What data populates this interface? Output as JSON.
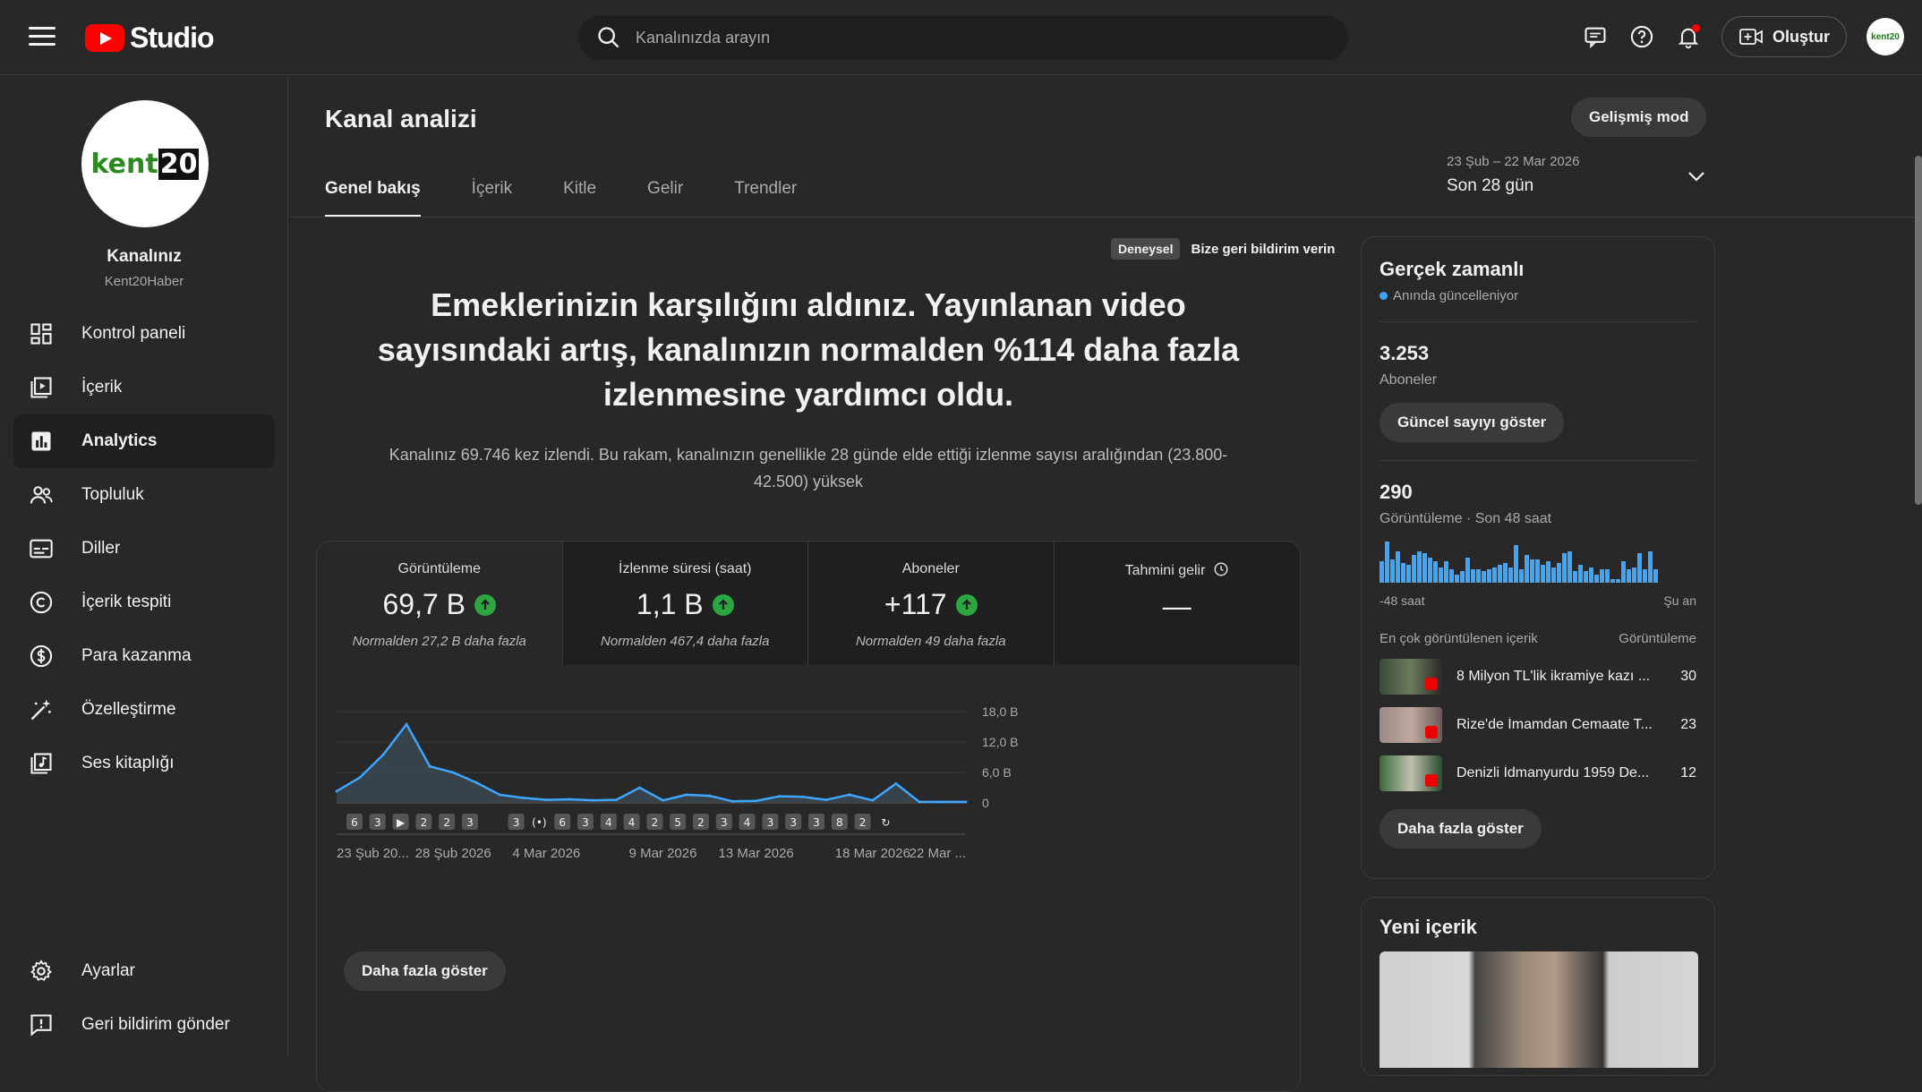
{
  "app": {
    "logo_text": "Studio",
    "search_placeholder": "Kanalınızda arayın",
    "create_label": "Oluştur",
    "avatar_text": "kent20"
  },
  "channel": {
    "name": "Kanalınız",
    "handle": "Kent20Haber",
    "avatar_text": "kent",
    "avatar_num": "20"
  },
  "nav": [
    {
      "label": "Kontrol paneli",
      "icon": "dashboard-icon"
    },
    {
      "label": "İçerik",
      "icon": "content-icon"
    },
    {
      "label": "Analytics",
      "icon": "analytics-icon",
      "active": true
    },
    {
      "label": "Topluluk",
      "icon": "community-icon"
    },
    {
      "label": "Diller",
      "icon": "subtitles-icon"
    },
    {
      "label": "İçerik tespiti",
      "icon": "copyright-icon"
    },
    {
      "label": "Para kazanma",
      "icon": "dollar-icon"
    },
    {
      "label": "Özelleştirme",
      "icon": "magic-wand-icon"
    },
    {
      "label": "Ses kitaplığı",
      "icon": "audio-library-icon"
    }
  ],
  "nav_bottom": [
    {
      "label": "Ayarlar",
      "icon": "gear-icon"
    },
    {
      "label": "Geri bildirim gönder",
      "icon": "feedback-icon"
    }
  ],
  "page": {
    "title": "Kanal analizi",
    "advanced_label": "Gelişmiş mod",
    "tabs": [
      "Genel bakış",
      "İçerik",
      "Kitle",
      "Gelir",
      "Trendler"
    ],
    "date_sub": "23 Şub – 22 Mar 2026",
    "date_main": "Son 28 gün",
    "exp_badge": "Deneysel",
    "exp_feedback": "Bize geri bildirim verin",
    "headline": "Emeklerinizin karşılığını aldınız. Yayınlanan video sayısındaki artış, kanalınızın normalden %114 daha fazla izlenmesine yardımcı oldu.",
    "subline": "Kanalınız 69.746 kez izlendi. Bu rakam, kanalınızın genellikle 28 günde elde ettiği izlenme sayısı aralığından (23.800-42.500) yüksek",
    "more_label": "Daha fazla göster"
  },
  "metrics": [
    {
      "label": "Görüntüleme",
      "value": "69,7 B",
      "note": "Normalden 27,2 B daha fazla"
    },
    {
      "label": "İzlenme süresi (saat)",
      "value": "1,1 B",
      "note": "Normalden 467,4 daha fazla"
    },
    {
      "label": "Aboneler",
      "value": "+117",
      "note": "Normalden 49 daha fazla"
    },
    {
      "label": "Tahmini gelir",
      "value": "—",
      "note": ""
    }
  ],
  "chart_data": {
    "type": "area",
    "x": [
      "23 Şub",
      "24 Şub",
      "25 Şub",
      "26 Şub",
      "27 Şub",
      "28 Şub",
      "1 Mar",
      "2 Mar",
      "3 Mar",
      "4 Mar",
      "5 Mar",
      "6 Mar",
      "7 Mar",
      "8 Mar",
      "9 Mar",
      "10 Mar",
      "11 Mar",
      "12 Mar",
      "13 Mar",
      "14 Mar",
      "15 Mar",
      "16 Mar",
      "17 Mar",
      "18 Mar",
      "19 Mar",
      "20 Mar",
      "21 Mar",
      "22 Mar"
    ],
    "y": [
      2300,
      5000,
      9500,
      15500,
      7200,
      6000,
      4000,
      1600,
      1000,
      600,
      700,
      500,
      600,
      3000,
      500,
      1600,
      1400,
      300,
      400,
      1300,
      1200,
      600,
      1600,
      500,
      3800,
      200,
      200,
      200
    ],
    "tick_labels": [
      "23 Şub 20...",
      "28 Şub 2026",
      "4 Mar 2026",
      "9 Mar 2026",
      "13 Mar 2026",
      "18 Mar 2026",
      "22 Mar ..."
    ],
    "tick_index": [
      0,
      5,
      9,
      14,
      18,
      23,
      27
    ],
    "y_ticks": [
      "18,0 B",
      "12,0 B",
      "6,0 B",
      "0"
    ],
    "y_tick_values": [
      18000,
      12000,
      6000,
      0
    ],
    "ylim": [
      0,
      18000
    ],
    "markers": [
      "6",
      "3",
      "▶",
      "2",
      "2",
      "3",
      "",
      "3",
      "(•)",
      "6",
      "3",
      "4",
      "4",
      "2",
      "5",
      "2",
      "3",
      "4",
      "3",
      "3",
      "3",
      "8",
      "2",
      "↻"
    ],
    "grid": true,
    "colors": {
      "line": "#3ea6ff",
      "fill": "#3a4650"
    }
  },
  "realtime": {
    "title": "Gerçek zamanlı",
    "sub": "Anında güncelleniyor",
    "subs_value": "3.253",
    "subs_label": "Aboneler",
    "subs_btn": "Güncel sayıyı göster",
    "views_value": "290",
    "views_label": "Görüntüleme · Son 48 saat",
    "bars": [
      0.5,
      1.0,
      0.55,
      0.75,
      0.45,
      0.4,
      0.65,
      0.75,
      0.7,
      0.6,
      0.5,
      0.35,
      0.5,
      0.3,
      0.15,
      0.25,
      0.6,
      0.3,
      0.3,
      0.25,
      0.3,
      0.35,
      0.4,
      0.45,
      0.35,
      0.9,
      0.3,
      0.65,
      0.55,
      0.55,
      0.4,
      0.5,
      0.35,
      0.45,
      0.7,
      0.75,
      0.25,
      0.4,
      0.25,
      0.35,
      0.15,
      0.3,
      0.3,
      0.05,
      0.05,
      0.5,
      0.3,
      0.35,
      0.7,
      0.3,
      0.75,
      0.3
    ],
    "axis_left": "-48 saat",
    "axis_right": "Şu an",
    "top_head": "En çok görüntülenen içerik",
    "top_head_right": "Görüntüleme",
    "videos": [
      {
        "title": "8 Milyon TL'lik ikramiye kazı ...",
        "count": "30"
      },
      {
        "title": "Rize'de İmamdan Cemaate T...",
        "count": "23"
      },
      {
        "title": "Denizli İdmanyurdu 1959 De...",
        "count": "12"
      }
    ],
    "more_btn": "Daha fazla göster"
  },
  "new_content": {
    "title": "Yeni içerik"
  }
}
